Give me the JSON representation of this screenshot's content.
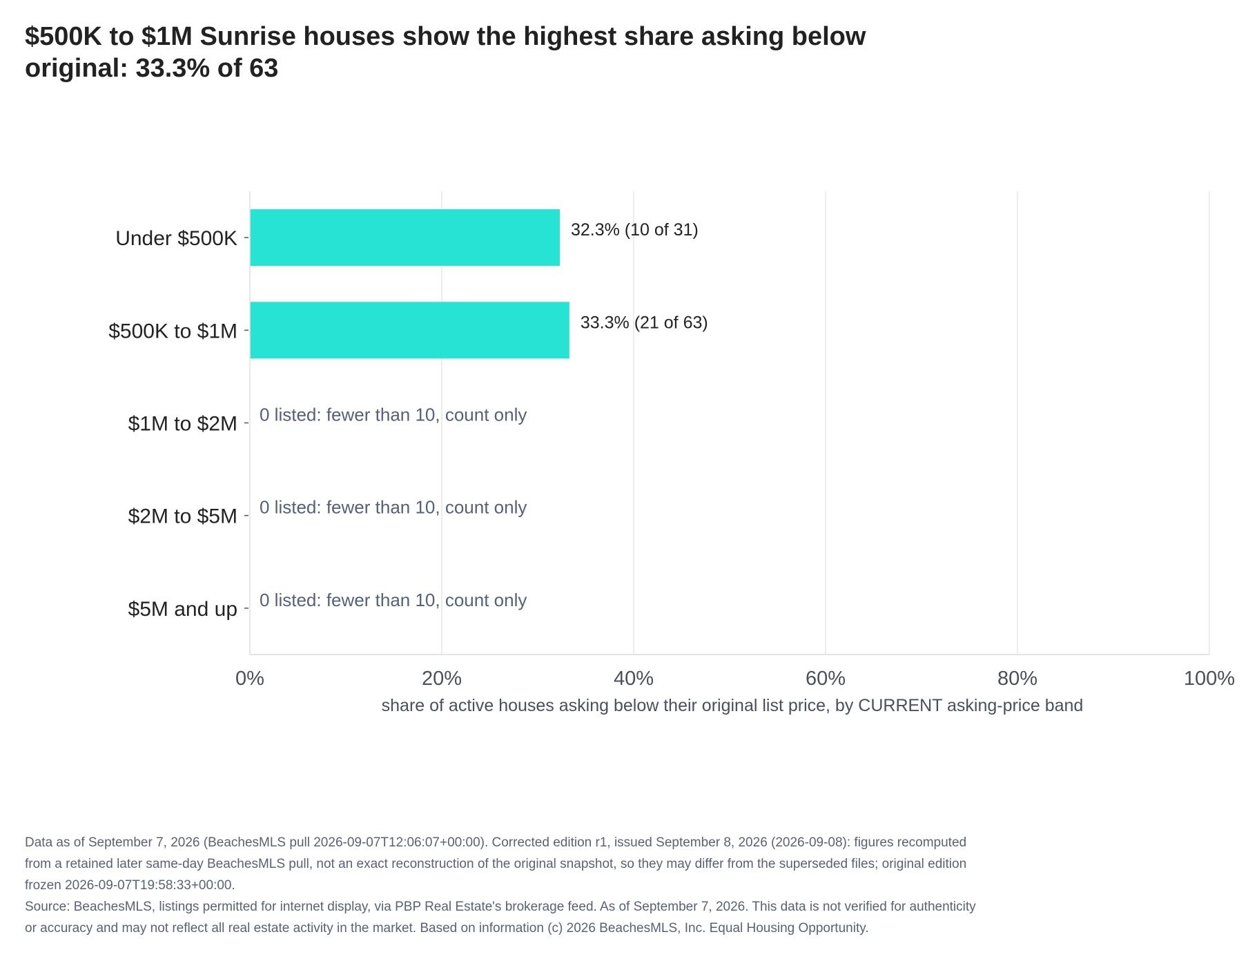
{
  "title": "$500K to $1M Sunrise houses show the highest share asking below original: 33.3% of 63",
  "chart_data": {
    "type": "bar",
    "orientation": "horizontal",
    "categories": [
      "Under $500K",
      "$500K to $1M",
      "$1M to $2M",
      "$2M to $5M",
      "$5M and up"
    ],
    "values": [
      32.3,
      33.3,
      null,
      null,
      null
    ],
    "labels": [
      "32.3%  (10 of 31)",
      "33.3%  (21 of 63)",
      "0 listed: fewer than 10, count only",
      "0 listed: fewer than 10, count only",
      "0 listed: fewer than 10, count only"
    ],
    "xlabel": "share of active houses asking below their original list price, by CURRENT asking-price band",
    "xlim": [
      0,
      100
    ],
    "xticks": [
      0,
      20,
      40,
      60,
      80,
      100
    ],
    "xtick_labels": [
      "0%",
      "20%",
      "40%",
      "60%",
      "80%",
      "100%"
    ],
    "grid": true,
    "bar_color": "#26e3d4",
    "note_color": "#55607a"
  },
  "footnote": {
    "line1": "Data as of September 7, 2026 (BeachesMLS pull 2026-09-07T12:06:07+00:00). Corrected edition r1, issued September 8, 2026 (2026-09-08): figures recomputed from a retained later same-day BeachesMLS pull, not an exact reconstruction of the original snapshot, so they may differ from the superseded files; original edition frozen 2026-09-07T19:58:33+00:00.",
    "line2": "Source: BeachesMLS, listings permitted for internet display, via PBP Real Estate's brokerage feed. As of September 7, 2026. This data is not verified for authenticity or accuracy and may not reflect all real estate activity in the market. Based on information (c) 2026 BeachesMLS, Inc. Equal Housing Opportunity."
  }
}
